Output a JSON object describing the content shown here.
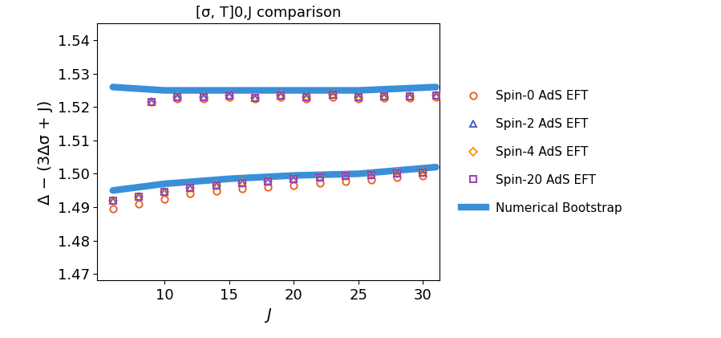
{
  "chart_data": {
    "type": "scatter",
    "title": "[σ, T]0,J comparison",
    "x_label": "J",
    "y_label": "Δ − (3Δσ + J)",
    "xlim": [
      4.8,
      31.3
    ],
    "xticks": [
      10,
      15,
      20,
      25,
      30
    ],
    "ylim": [
      1.468,
      1.545
    ],
    "yticks": [
      1.47,
      1.48,
      1.49,
      {
        "value": 1.5,
        "label": "1.50"
      },
      1.51,
      1.52,
      1.53,
      1.54
    ],
    "grid": false,
    "legend": "center left",
    "x": [
      6,
      7,
      8,
      9,
      10,
      11,
      12,
      13,
      14,
      15,
      16,
      17,
      18,
      19,
      20,
      21,
      22,
      23,
      24,
      25,
      26,
      27,
      28,
      29,
      30,
      31
    ],
    "series": [
      {
        "name": "Spin-0 AdS EFT",
        "color": "#e8632b",
        "marker": "circle",
        "values": [
          1.4895,
          null,
          1.491,
          1.5215,
          1.4925,
          1.5225,
          1.494,
          1.5225,
          1.4948,
          1.523,
          1.4955,
          1.5225,
          1.496,
          1.523,
          1.4966,
          1.5225,
          1.4972,
          1.523,
          1.4978,
          1.5225,
          1.4983,
          1.5228,
          1.4988,
          1.5228,
          1.4993,
          1.523
        ]
      },
      {
        "name": "Spin-2 AdS EFT",
        "color": "#4a5fc1",
        "marker": "triangle",
        "values": [
          1.492,
          null,
          1.4932,
          1.5215,
          1.4945,
          1.523,
          1.4958,
          1.523,
          1.4965,
          1.5235,
          1.4972,
          1.5228,
          1.4978,
          1.5235,
          1.4984,
          1.523,
          1.4989,
          1.5238,
          1.4993,
          1.523,
          1.4997,
          1.5232,
          1.5001,
          1.5232,
          1.5004,
          1.5235
        ]
      },
      {
        "name": "Spin-4 AdS EFT",
        "color": "#f39c12",
        "marker": "diamond",
        "values": [
          1.492,
          null,
          1.4932,
          1.5215,
          1.4945,
          1.523,
          1.4958,
          1.523,
          1.4965,
          1.5235,
          1.4972,
          1.5228,
          1.4978,
          1.5235,
          1.4984,
          1.523,
          1.4989,
          1.5238,
          1.4993,
          1.523,
          1.4997,
          1.5232,
          1.5001,
          1.5232,
          1.5004,
          1.5235
        ]
      },
      {
        "name": "Spin-20 AdS EFT",
        "color": "#9b3fb5",
        "marker": "square",
        "values": [
          1.492,
          null,
          1.4932,
          1.5215,
          1.4945,
          1.523,
          1.4958,
          1.523,
          1.4965,
          1.5235,
          1.4972,
          1.5228,
          1.4978,
          1.5235,
          1.4984,
          1.523,
          1.4989,
          1.5238,
          1.4993,
          1.523,
          1.4997,
          1.5232,
          1.5001,
          1.5232,
          1.5004,
          1.5235
        ]
      },
      {
        "name": "Numerical Bootstrap",
        "color": "#3a8fd9",
        "type": "line",
        "segments": [
          {
            "x": [
              6,
              10,
              15,
              20,
              25,
              31
            ],
            "values": [
              1.526,
              1.525,
              1.525,
              1.525,
              1.525,
              1.526
            ]
          },
          {
            "x": [
              6,
              10,
              15,
              20,
              25,
              31
            ],
            "values": [
              1.495,
              1.497,
              1.4985,
              1.4995,
              1.5,
              1.502
            ]
          }
        ]
      }
    ]
  }
}
